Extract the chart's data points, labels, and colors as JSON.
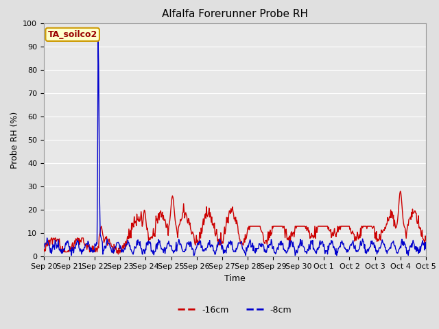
{
  "title": "Alfalfa Forerunner Probe RH",
  "ylabel": "Probe RH (%)",
  "xlabel": "Time",
  "ylim": [
    0,
    100
  ],
  "background_color": "#e0e0e0",
  "plot_bg_color": "#e8e8e8",
  "grid_color": "#ffffff",
  "annotation_text": "TA_soilco2",
  "annotation_bg": "#ffffcc",
  "annotation_border": "#cc9900",
  "annotation_text_color": "#990000",
  "line_red_color": "#cc0000",
  "line_blue_color": "#0000cc",
  "line_width": 1.0,
  "legend_labels": [
    "-16cm",
    "-8cm"
  ],
  "legend_colors": [
    "#cc0000",
    "#0000cc"
  ],
  "title_fontsize": 11,
  "label_fontsize": 9,
  "tick_fontsize": 8,
  "tick_labels": [
    "Sep 20",
    "Sep 21",
    "Sep 22",
    "Sep 23",
    "Sep 24",
    "Sep 25",
    "Sep 26",
    "Sep 27",
    "Sep 28",
    "Sep 29",
    "Sep 30",
    "Oct 1",
    "Oct 2",
    "Oct 3",
    "Oct 4",
    "Oct 5"
  ]
}
